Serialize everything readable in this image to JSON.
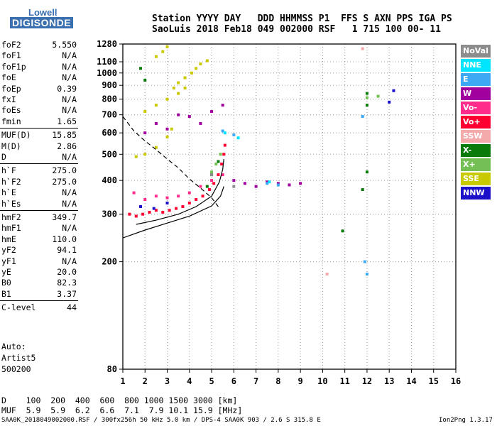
{
  "logo": {
    "line1": "Lowell",
    "line2": "DIGISONDE"
  },
  "header": {
    "line1": "Station YYYY DAY   DDD HHMMSS P1  FFS S AXN PPS IGA PS",
    "line2": "SaoLuis 2018 Feb18 049 002000 RSF   1 715 100 00- 11"
  },
  "params_group1": [
    {
      "name": "foF2",
      "value": "5.550"
    },
    {
      "name": "foF1",
      "value": "N/A"
    },
    {
      "name": "foF1p",
      "value": "N/A"
    },
    {
      "name": "foE",
      "value": "N/A"
    },
    {
      "name": "foEp",
      "value": "0.39"
    },
    {
      "name": "fxI",
      "value": "N/A"
    },
    {
      "name": "foEs",
      "value": "N/A"
    },
    {
      "name": "fmin",
      "value": "1.65"
    }
  ],
  "params_group2": [
    {
      "name": "MUF(D)",
      "value": "15.85"
    },
    {
      "name": "M(D)",
      "value": "2.86"
    },
    {
      "name": "D",
      "value": "N/A"
    }
  ],
  "params_group3": [
    {
      "name": "h`F",
      "value": "275.0"
    },
    {
      "name": "h`F2",
      "value": "275.0"
    },
    {
      "name": "h`E",
      "value": "N/A"
    },
    {
      "name": "h`Es",
      "value": "N/A"
    }
  ],
  "params_group4": [
    {
      "name": "hmF2",
      "value": "349.7"
    },
    {
      "name": "hmF1",
      "value": "N/A"
    },
    {
      "name": "hmE",
      "value": "110.0"
    },
    {
      "name": "yF2",
      "value": "94.1"
    },
    {
      "name": "yF1",
      "value": "N/A"
    },
    {
      "name": "yE",
      "value": "20.0"
    },
    {
      "name": "B0",
      "value": "82.3"
    },
    {
      "name": "B1",
      "value": "3.37"
    }
  ],
  "params_group5": [
    {
      "name": "C-level",
      "value": "44"
    }
  ],
  "auto": {
    "l1": "Auto:",
    "l2": "Artist5",
    "l3": "500200"
  },
  "legend": [
    {
      "label": "NoVal",
      "color": "#8c8c8c"
    },
    {
      "label": "NNE",
      "color": "#00e5ff"
    },
    {
      "label": "E",
      "color": "#3da9f5"
    },
    {
      "label": "W",
      "color": "#a0009e"
    },
    {
      "label": "Vo-",
      "color": "#ff2c8c"
    },
    {
      "label": "Vo+",
      "color": "#ff0033"
    },
    {
      "label": "SSW",
      "color": "#f4aaaa"
    },
    {
      "label": "X-",
      "color": "#0a7a0a"
    },
    {
      "label": "X+",
      "color": "#74c054"
    },
    {
      "label": "SSE",
      "color": "#c9c900"
    },
    {
      "label": "NNW",
      "color": "#1c10c8"
    }
  ],
  "muf_table": {
    "d_line": "D    100  200  400  600  800 1000 1500 3000 [km]",
    "muf_line": "MUF  5.9  5.9  6.2  6.6  7.1  7.9 10.1 15.9 [MHz]"
  },
  "footer": {
    "left": "SAA0K_2018049002000.RSF / 300fx256h 50 kHz 5.0 km / DPS-4 SAA0K 903 / 2.6 S 315.8 E",
    "right": "Ion2Png 1.3.17"
  },
  "chart_data": {
    "type": "scatter",
    "title": "",
    "xlabel": "",
    "ylabel": "",
    "xlim": [
      1,
      16
    ],
    "ylim": [
      80,
      1280
    ],
    "xticks": [
      1,
      2,
      3,
      4,
      5,
      6,
      7,
      8,
      9,
      10,
      11,
      12,
      13,
      14,
      15,
      16
    ],
    "yticks": [
      80,
      200,
      300,
      400,
      500,
      600,
      700,
      800,
      900,
      1000,
      1100,
      1280
    ],
    "y_scale": "log",
    "grid": true,
    "legend_position": "right",
    "curves": [
      {
        "style": "solid",
        "color": "#000000",
        "points": [
          [
            1,
            245
          ],
          [
            2,
            262
          ],
          [
            3,
            278
          ],
          [
            4,
            295
          ],
          [
            5,
            322
          ],
          [
            5.4,
            350
          ],
          [
            5.55,
            380
          ]
        ]
      },
      {
        "style": "solid",
        "color": "#000000",
        "points": [
          [
            1.6,
            275
          ],
          [
            2.5,
            285
          ],
          [
            3.5,
            300
          ],
          [
            4.3,
            320
          ],
          [
            5.0,
            350
          ],
          [
            5.35,
            395
          ],
          [
            5.5,
            440
          ],
          [
            5.55,
            480
          ]
        ]
      },
      {
        "style": "dashed",
        "color": "#000000",
        "points": [
          [
            1,
            690
          ],
          [
            1.5,
            610
          ],
          [
            2,
            560
          ],
          [
            2.5,
            520
          ],
          [
            3,
            480
          ],
          [
            3.5,
            445
          ],
          [
            4,
            405
          ],
          [
            4.5,
            375
          ],
          [
            5,
            345
          ],
          [
            5.3,
            320
          ]
        ]
      }
    ],
    "traces": [
      {
        "category": "Vo+",
        "color": "#ff0033",
        "points": [
          [
            1.3,
            300
          ],
          [
            1.6,
            295
          ],
          [
            1.9,
            300
          ],
          [
            2.2,
            305
          ],
          [
            2.5,
            310
          ],
          [
            2.8,
            305
          ],
          [
            3.1,
            310
          ],
          [
            3.4,
            315
          ],
          [
            3.7,
            320
          ],
          [
            4.0,
            330
          ],
          [
            4.3,
            340
          ],
          [
            4.6,
            350
          ],
          [
            4.9,
            370
          ],
          [
            5.1,
            390
          ],
          [
            5.3,
            420
          ],
          [
            5.45,
            460
          ],
          [
            5.55,
            500
          ],
          [
            5.6,
            540
          ]
        ]
      },
      {
        "category": "Vo-",
        "color": "#ff2c8c",
        "points": [
          [
            1.5,
            360
          ],
          [
            2.0,
            340
          ],
          [
            2.5,
            350
          ],
          [
            3.0,
            345
          ],
          [
            3.5,
            350
          ],
          [
            4.0,
            360
          ],
          [
            4.5,
            380
          ],
          [
            5.0,
            400
          ],
          [
            5.5,
            420
          ]
        ]
      },
      {
        "category": "W",
        "color": "#a0009e",
        "points": [
          [
            2.0,
            600
          ],
          [
            2.5,
            650
          ],
          [
            3.0,
            620
          ],
          [
            3.5,
            700
          ],
          [
            4.0,
            690
          ],
          [
            4.5,
            650
          ],
          [
            5.0,
            720
          ],
          [
            5.5,
            760
          ],
          [
            6.0,
            400
          ],
          [
            6.5,
            390
          ],
          [
            7.0,
            380
          ],
          [
            7.5,
            395
          ],
          [
            8.0,
            390
          ],
          [
            8.5,
            385
          ],
          [
            9.0,
            390
          ]
        ]
      },
      {
        "category": "SSE",
        "color": "#c9c900",
        "points": [
          [
            1.6,
            490
          ],
          [
            2.0,
            500
          ],
          [
            2.5,
            530
          ],
          [
            3.0,
            580
          ],
          [
            3.2,
            620
          ],
          [
            2.5,
            1150
          ],
          [
            2.8,
            1200
          ],
          [
            3.0,
            1250
          ],
          [
            3.3,
            880
          ],
          [
            3.5,
            920
          ],
          [
            3.8,
            960
          ],
          [
            4.1,
            1000
          ],
          [
            4.3,
            1040
          ],
          [
            4.5,
            1080
          ],
          [
            4.8,
            1110
          ],
          [
            2.0,
            720
          ],
          [
            2.5,
            760
          ],
          [
            3.0,
            800
          ],
          [
            3.5,
            840
          ],
          [
            3.8,
            880
          ]
        ]
      },
      {
        "category": "X-",
        "color": "#0a7a0a",
        "points": [
          [
            1.8,
            1040
          ],
          [
            2.0,
            940
          ],
          [
            4.8,
            380
          ],
          [
            5.0,
            420
          ],
          [
            5.3,
            470
          ],
          [
            11.8,
            370
          ],
          [
            12.0,
            430
          ],
          [
            12.0,
            760
          ],
          [
            12.0,
            840
          ],
          [
            10.9,
            260
          ]
        ]
      },
      {
        "category": "X+",
        "color": "#74c054",
        "points": [
          [
            5.0,
            430
          ],
          [
            5.2,
            460
          ],
          [
            5.4,
            500
          ],
          [
            12.0,
            810
          ],
          [
            12.5,
            820
          ]
        ]
      },
      {
        "category": "E",
        "color": "#3da9f5",
        "points": [
          [
            5.5,
            610
          ],
          [
            6.0,
            590
          ],
          [
            11.8,
            690
          ],
          [
            11.9,
            200
          ],
          [
            12.0,
            180
          ],
          [
            7.5,
            390
          ],
          [
            8.0,
            385
          ]
        ]
      },
      {
        "category": "NNE",
        "color": "#00e5ff",
        "points": [
          [
            5.6,
            600
          ],
          [
            6.2,
            575
          ],
          [
            7.6,
            395
          ]
        ]
      },
      {
        "category": "NNW",
        "color": "#1c10c8",
        "points": [
          [
            1.8,
            320
          ],
          [
            2.4,
            315
          ],
          [
            3.0,
            330
          ],
          [
            13.2,
            860
          ],
          [
            13.0,
            780
          ]
        ]
      },
      {
        "category": "SSW",
        "color": "#f4aaaa",
        "points": [
          [
            10.2,
            180
          ],
          [
            11.8,
            1230
          ]
        ]
      },
      {
        "category": "NoVal",
        "color": "#8c8c8c",
        "points": [
          [
            5.0,
            420
          ],
          [
            6.0,
            380
          ]
        ]
      }
    ]
  }
}
